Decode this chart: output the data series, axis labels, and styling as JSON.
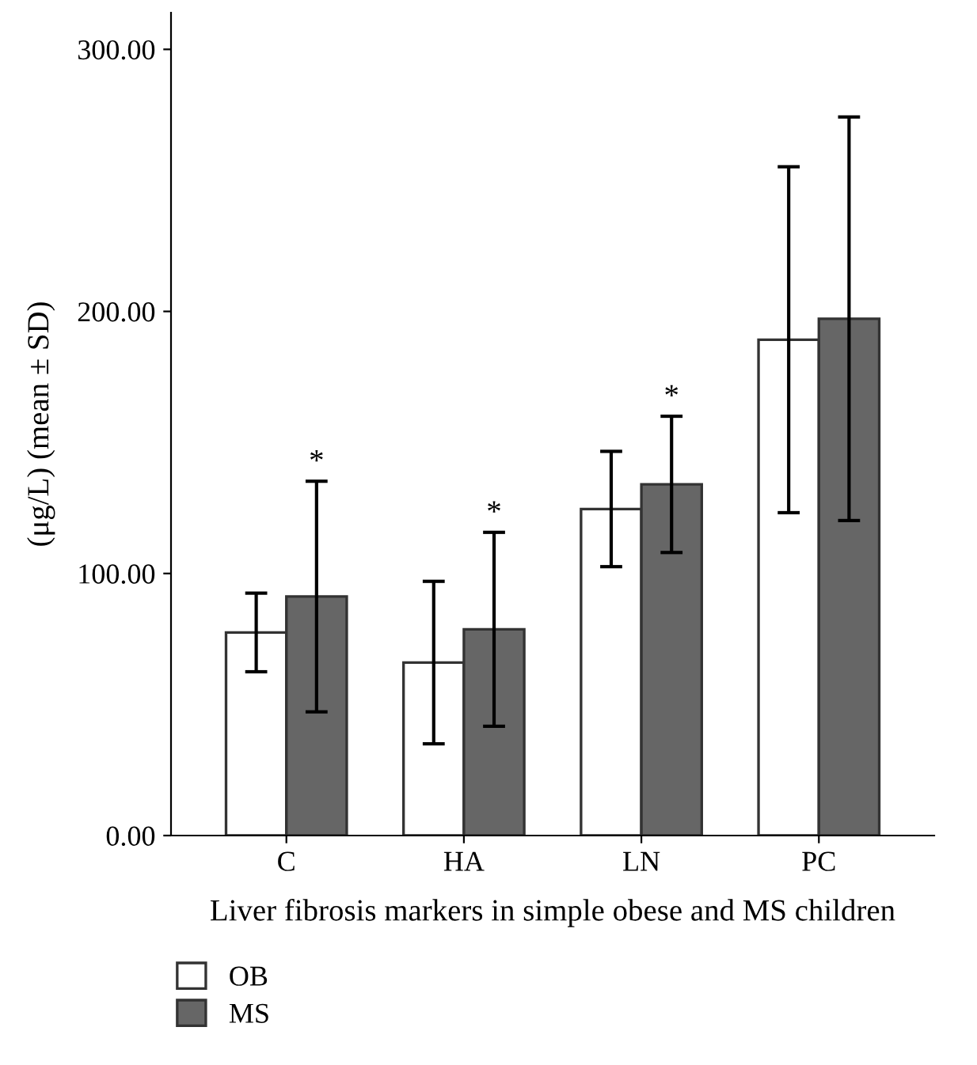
{
  "chart_data": {
    "type": "bar",
    "xlabel": "Liver fibrosis markers in simple obese and MS children",
    "ylabel": "(μg/L) (mean ± SD)",
    "categories": [
      "C",
      "HA",
      "LN",
      "PC"
    ],
    "series": [
      {
        "name": "OB",
        "color": "#ffffff",
        "values": [
          77.5,
          66,
          124.6,
          189.2
        ],
        "errors": [
          15,
          31,
          22,
          66
        ]
      },
      {
        "name": "MS",
        "color": "#666666",
        "values": [
          91.2,
          78.7,
          134,
          197.2
        ],
        "errors": [
          44,
          37,
          26,
          77
        ]
      }
    ],
    "ylim": [
      0,
      314
    ],
    "yticks": [
      {
        "value": 0,
        "label": "0.00"
      },
      {
        "value": 100,
        "label": "100.00"
      },
      {
        "value": 200,
        "label": "200.00"
      },
      {
        "value": 300,
        "label": "300.00"
      }
    ],
    "annotations": [
      "*",
      "*",
      "*"
    ],
    "legend": "bottom left",
    "grid": false
  }
}
